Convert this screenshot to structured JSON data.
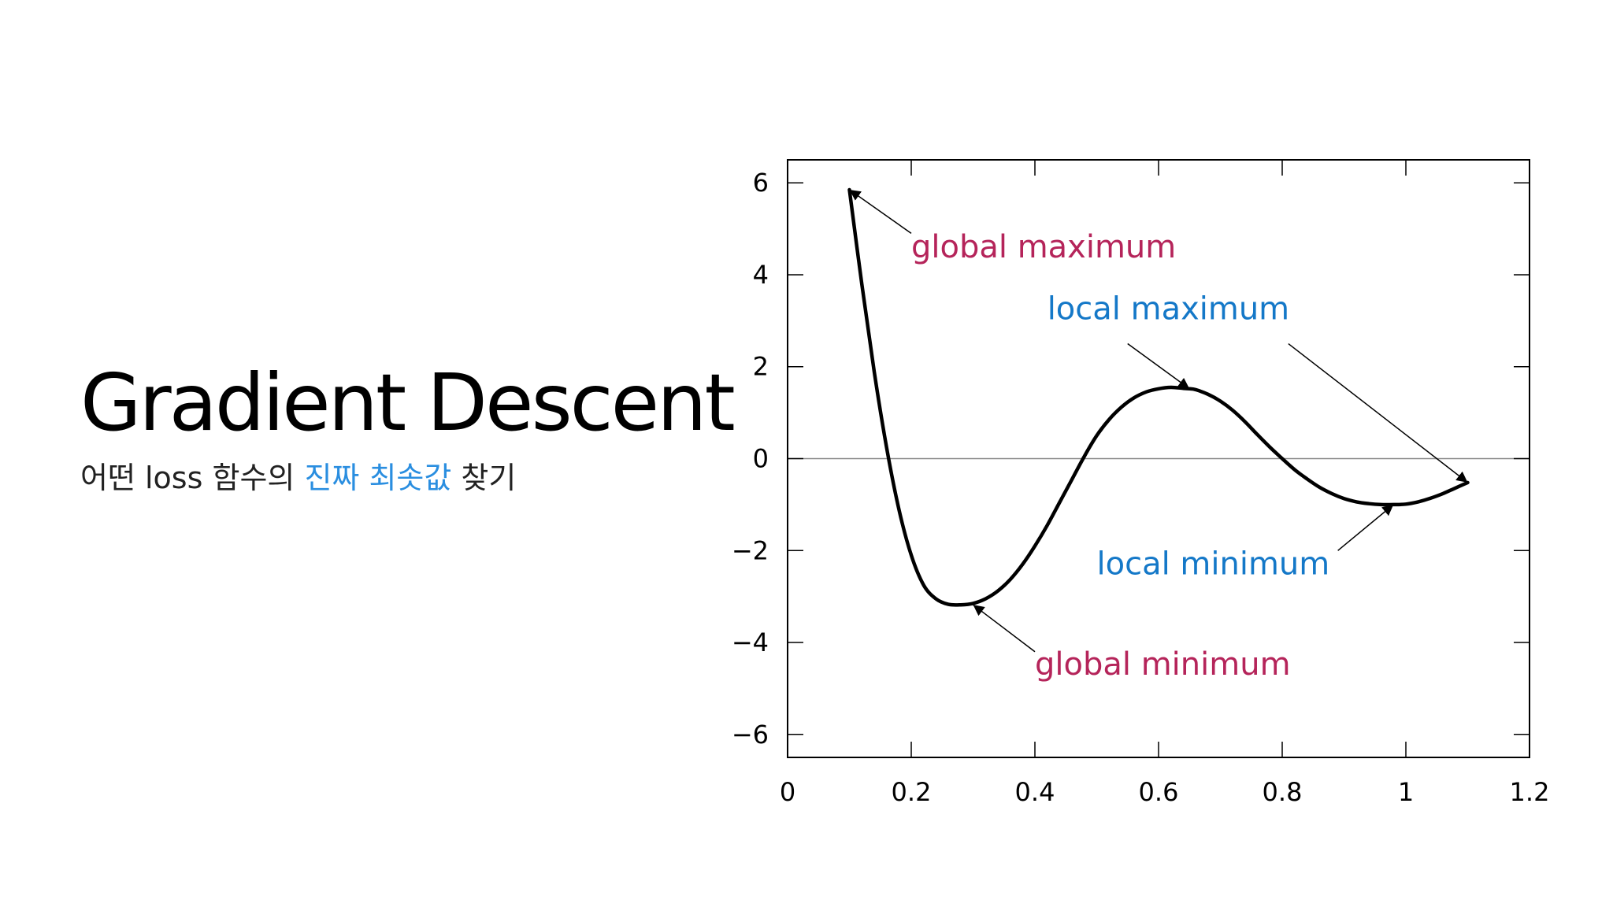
{
  "slide": {
    "title": "Gradient Descent",
    "subtitle_before": "어떤 loss 함수의 ",
    "subtitle_highlight": "진짜 최솟값",
    "subtitle_after": " 찾기",
    "highlight_color": "#2a8ee0"
  },
  "chart_data": {
    "type": "line",
    "title": "",
    "xlabel": "",
    "ylabel": "",
    "xlim": [
      0,
      1.2
    ],
    "ylim": [
      -6.5,
      6.5
    ],
    "x_ticks": [
      0,
      0.2,
      0.4,
      0.6,
      0.8,
      1,
      1.2
    ],
    "x_tick_labels": [
      "0",
      "0.2",
      "0.4",
      "0.6",
      "0.8",
      "1",
      "1.2"
    ],
    "y_ticks": [
      -6,
      -4,
      -2,
      0,
      2,
      4,
      6
    ],
    "y_tick_labels": [
      "−6",
      "−4",
      "−2",
      "0",
      "2",
      "4",
      "6"
    ],
    "grid": false,
    "zero_line": true,
    "series": [
      {
        "color": "#000000",
        "x": [
          0.1,
          0.12,
          0.14,
          0.16,
          0.18,
          0.2,
          0.22,
          0.24,
          0.26,
          0.28,
          0.3,
          0.32,
          0.34,
          0.36,
          0.38,
          0.4,
          0.42,
          0.44,
          0.46,
          0.48,
          0.5,
          0.52,
          0.54,
          0.56,
          0.58,
          0.6,
          0.62,
          0.64,
          0.65,
          0.66,
          0.68,
          0.7,
          0.72,
          0.74,
          0.76,
          0.78,
          0.8,
          0.82,
          0.84,
          0.86,
          0.88,
          0.9,
          0.92,
          0.94,
          0.96,
          0.98,
          1.0,
          1.02,
          1.04,
          1.06,
          1.08,
          1.1
        ],
        "y": [
          5.85,
          3.8,
          1.9,
          0.25,
          -1.1,
          -2.1,
          -2.75,
          -3.05,
          -3.17,
          -3.18,
          -3.15,
          -3.05,
          -2.88,
          -2.63,
          -2.3,
          -1.9,
          -1.45,
          -0.95,
          -0.45,
          0.05,
          0.5,
          0.85,
          1.12,
          1.32,
          1.45,
          1.52,
          1.55,
          1.53,
          1.52,
          1.5,
          1.4,
          1.25,
          1.05,
          0.8,
          0.52,
          0.25,
          0.0,
          -0.24,
          -0.44,
          -0.62,
          -0.76,
          -0.87,
          -0.94,
          -0.98,
          -1.0,
          -1.0,
          -0.99,
          -0.94,
          -0.86,
          -0.76,
          -0.64,
          -0.52
        ]
      }
    ],
    "annotations": [
      {
        "text": "global maximum",
        "color": "#b5245a",
        "text_x": 0.2,
        "text_y": 4.38,
        "point_x": 0.1,
        "point_y": 5.85,
        "tail_x": 0.2,
        "tail_y": 4.9
      },
      {
        "text": "local maximum",
        "color": "#1478c8",
        "text_x": 0.42,
        "text_y": 3.03,
        "point_x": 0.65,
        "point_y": 1.52,
        "tail_x": 0.55,
        "tail_y": 2.5
      },
      {
        "text": "local maximum",
        "color": "#1478c8",
        "text_x": null,
        "text_y": null,
        "point_x": 1.1,
        "point_y": -0.52,
        "tail_x": 0.81,
        "tail_y": 2.5
      },
      {
        "text": "local minimum",
        "color": "#1478c8",
        "text_x": 0.5,
        "text_y": -2.52,
        "point_x": 0.98,
        "point_y": -1.0,
        "tail_x": 0.89,
        "tail_y": -2.0
      },
      {
        "text": "global minimum",
        "color": "#b5245a",
        "text_x": 0.4,
        "text_y": -4.7,
        "point_x": 0.3,
        "point_y": -3.18,
        "tail_x": 0.4,
        "tail_y": -4.2
      }
    ]
  }
}
